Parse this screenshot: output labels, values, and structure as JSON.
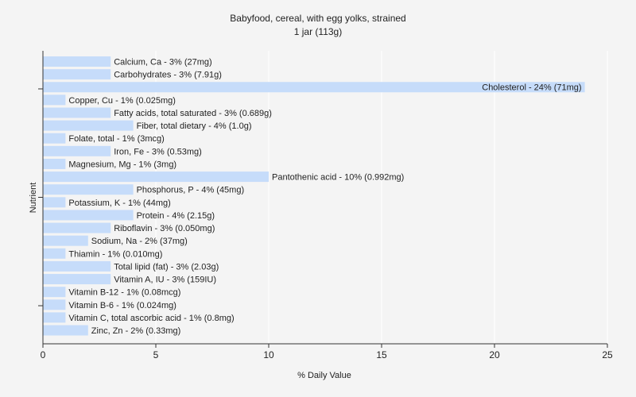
{
  "chart_data": {
    "type": "bar",
    "orientation": "horizontal",
    "title": "Babyfood, cereal, with egg yolks, strained",
    "subtitle": "1 jar (113g)",
    "xlabel": "% Daily Value",
    "ylabel": "Nutrient",
    "xlim": [
      0,
      25
    ],
    "xticks": [
      0,
      5,
      10,
      15,
      20,
      25
    ],
    "grid": true,
    "categories": [
      "Calcium, Ca",
      "Carbohydrates",
      "Cholesterol",
      "Copper, Cu",
      "Fatty acids, total saturated",
      "Fiber, total dietary",
      "Folate, total",
      "Iron, Fe",
      "Magnesium, Mg",
      "Pantothenic acid",
      "Phosphorus, P",
      "Potassium, K",
      "Protein",
      "Riboflavin",
      "Sodium, Na",
      "Thiamin",
      "Total lipid (fat)",
      "Vitamin A, IU",
      "Vitamin B-12",
      "Vitamin B-6",
      "Vitamin C, total ascorbic acid",
      "Zinc, Zn"
    ],
    "values": [
      3,
      3,
      24,
      1,
      3,
      4,
      1,
      3,
      1,
      10,
      4,
      1,
      4,
      3,
      2,
      1,
      3,
      3,
      1,
      1,
      1,
      2
    ],
    "labels": [
      "Calcium, Ca - 3% (27mg)",
      "Carbohydrates - 3% (7.91g)",
      "Cholesterol - 24% (71mg)",
      "Copper, Cu - 1% (0.025mg)",
      "Fatty acids, total saturated - 3% (0.689g)",
      "Fiber, total dietary - 4% (1.0g)",
      "Folate, total - 1% (3mcg)",
      "Iron, Fe - 3% (0.53mg)",
      "Magnesium, Mg - 1% (3mg)",
      "Pantothenic acid - 10% (0.992mg)",
      "Phosphorus, P - 4% (45mg)",
      "Potassium, K - 1% (44mg)",
      "Protein - 4% (2.15g)",
      "Riboflavin - 3% (0.050mg)",
      "Sodium, Na - 2% (37mg)",
      "Thiamin - 1% (0.010mg)",
      "Total lipid (fat) - 3% (2.03g)",
      "Vitamin A, IU - 3% (159IU)",
      "Vitamin B-12 - 1% (0.08mcg)",
      "Vitamin B-6 - 1% (0.024mg)",
      "Vitamin C, total ascorbic acid - 1% (0.8mg)",
      "Zinc, Zn - 2% (0.33mg)"
    ],
    "colors": {
      "bar": "#c6dcfa",
      "grid": "#ffffff",
      "background": "#f4f4f4"
    }
  }
}
